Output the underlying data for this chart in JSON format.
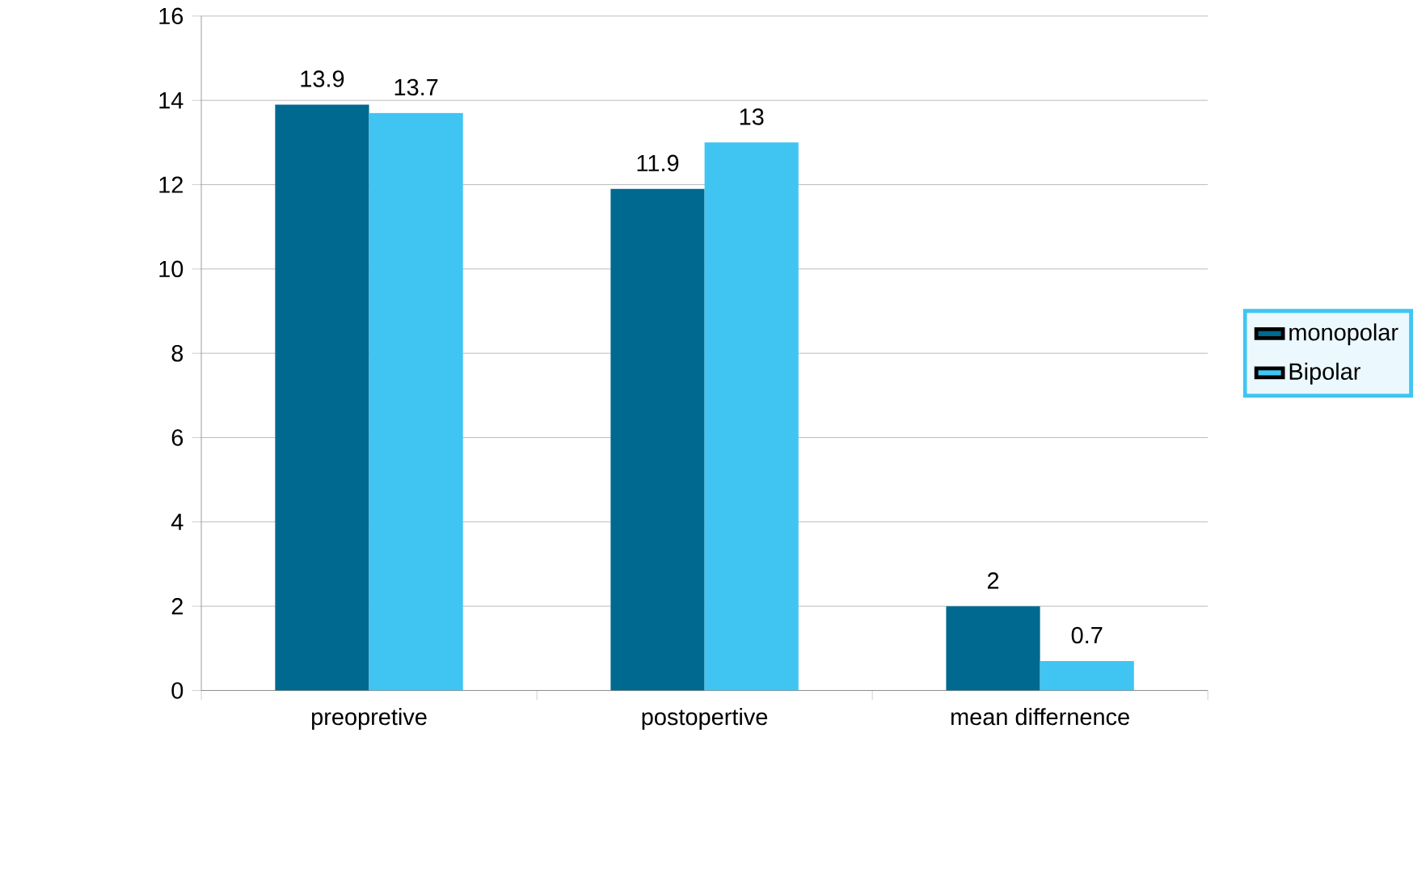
{
  "chart_data": {
    "type": "bar",
    "categories": [
      "preopretive",
      "postopertive",
      "mean differnence"
    ],
    "series": [
      {
        "name": "monopolar",
        "color": "#00698f",
        "values": [
          13.9,
          11.9,
          2
        ]
      },
      {
        "name": "Bipolar",
        "color": "#40c5f2",
        "values": [
          13.7,
          13,
          0.7
        ]
      }
    ],
    "ylim": [
      0,
      16
    ],
    "yticks": [
      0,
      2,
      4,
      6,
      8,
      10,
      12,
      14,
      16
    ],
    "grid": "y",
    "legend": "right",
    "data_labels": true
  }
}
